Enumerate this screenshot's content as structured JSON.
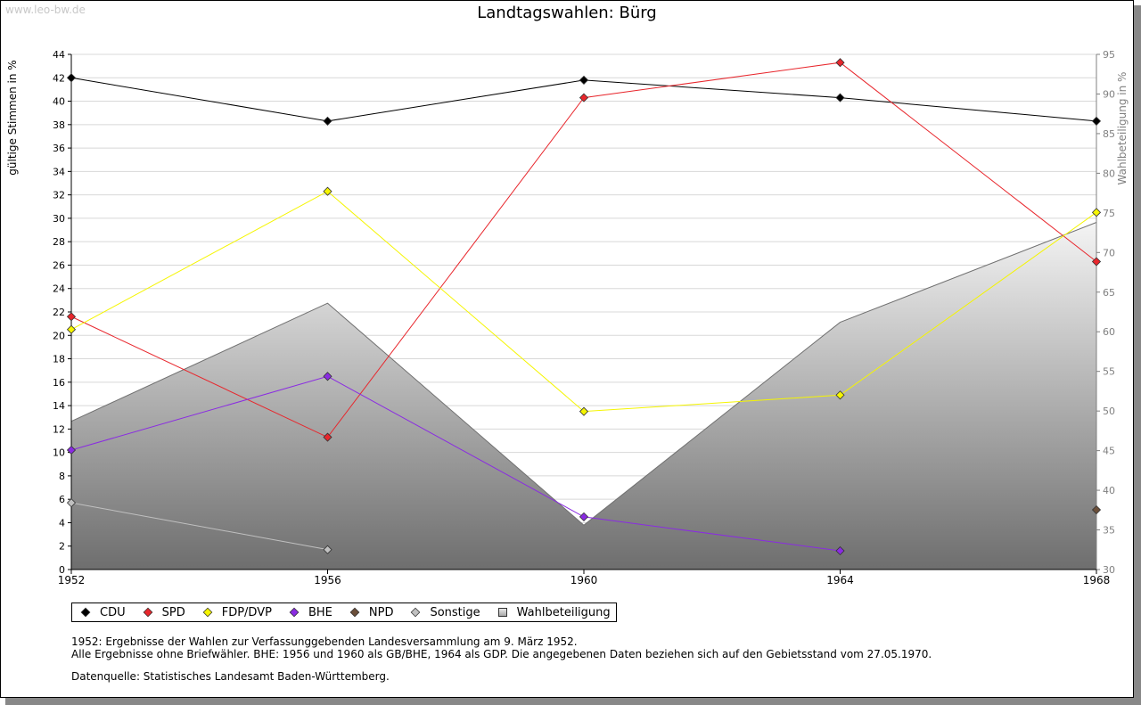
{
  "watermark": "www.leo-bw.de",
  "legend": [
    {
      "label": "CDU",
      "color": "#000000",
      "marker": "diamond"
    },
    {
      "label": "SPD",
      "color": "#e8262c",
      "marker": "diamond"
    },
    {
      "label": "FDP/DVP",
      "color": "#f5f500",
      "marker": "diamond"
    },
    {
      "label": "BHE",
      "color": "#8a2be2",
      "marker": "diamond"
    },
    {
      "label": "NPD",
      "color": "#6b4f3a",
      "marker": "diamond"
    },
    {
      "label": "Sonstige",
      "color": "#c0c0c0",
      "marker": "diamond"
    },
    {
      "label": "Wahlbeteiligung",
      "color": "#b0b0b0",
      "marker": "square"
    }
  ],
  "notes": [
    "1952: Ergebnisse der Wahlen zur Verfassunggebenden Landesversammlung am 9. März 1952.",
    "Alle Ergebnisse ohne Briefwähler. BHE: 1956 und 1960 als GB/BHE, 1964 als GDP. Die angegebenen Daten beziehen sich auf den Gebietsstand vom 27.05.1970."
  ],
  "source": "Datenquelle: Statistisches Landesamt Baden-Württemberg.",
  "chart_data": {
    "type": "line",
    "title": "Landtagswahlen: Bürg",
    "ylabel": "gültige Stimmen in %",
    "y2label": "Wahlbeteiligung in %",
    "x": [
      1952,
      1956,
      1960,
      1964,
      1968
    ],
    "ylim": [
      0,
      44
    ],
    "y_ticks": [
      0,
      2,
      4,
      6,
      8,
      10,
      12,
      14,
      16,
      18,
      20,
      22,
      24,
      26,
      28,
      30,
      32,
      34,
      36,
      38,
      40,
      42,
      44
    ],
    "y2lim": [
      30,
      95
    ],
    "y2_ticks": [
      30,
      35,
      40,
      45,
      50,
      55,
      60,
      65,
      70,
      75,
      80,
      85,
      90,
      95
    ],
    "grid": true,
    "legend_position": "bottom",
    "series": [
      {
        "name": "CDU",
        "color": "#000000",
        "values": [
          42.0,
          38.3,
          41.8,
          40.3,
          38.3
        ]
      },
      {
        "name": "SPD",
        "color": "#e8262c",
        "values": [
          21.6,
          11.3,
          40.3,
          43.3,
          26.3
        ]
      },
      {
        "name": "FDP/DVP",
        "color": "#f5f500",
        "values": [
          20.5,
          32.3,
          13.5,
          14.9,
          30.5
        ]
      },
      {
        "name": "BHE",
        "color": "#8a2be2",
        "values": [
          10.2,
          16.5,
          4.5,
          1.6,
          null
        ]
      },
      {
        "name": "NPD",
        "color": "#6b4f3a",
        "values": [
          null,
          null,
          null,
          null,
          5.1
        ]
      },
      {
        "name": "Sonstige",
        "color": "#c0c0c0",
        "values": [
          5.7,
          1.7,
          null,
          null,
          null
        ]
      }
    ],
    "area_series": {
      "name": "Wahlbeteiligung",
      "axis": "right",
      "values": [
        48.7,
        63.6,
        35.6,
        61.2,
        73.8
      ]
    }
  }
}
